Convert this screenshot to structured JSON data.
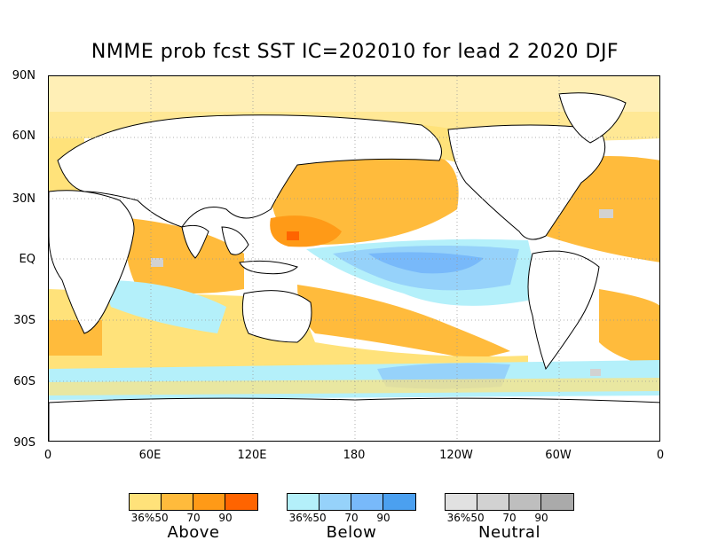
{
  "title": "NMME prob fcst SST IC=202010 for lead 2 2020 DJF",
  "lat_labels": [
    "90N",
    "60N",
    "30N",
    "EQ",
    "30S",
    "60S",
    "90S"
  ],
  "lon_labels": [
    "0",
    "60E",
    "120E",
    "180",
    "120W",
    "60W",
    "0"
  ],
  "legend": {
    "above": {
      "label": "Above",
      "ticks": [
        "36%",
        "50",
        "70",
        "90"
      ],
      "colors": [
        "#ffe27a",
        "#ffbb3c",
        "#ff9a17",
        "#ff6400"
      ]
    },
    "below": {
      "label": "Below",
      "ticks": [
        "36%",
        "50",
        "70",
        "90"
      ],
      "colors": [
        "#b4f0fa",
        "#96d2fa",
        "#78b9fa",
        "#4ba0f0"
      ]
    },
    "neutral": {
      "label": "Neutral",
      "ticks": [
        "36%",
        "50",
        "70",
        "90"
      ],
      "colors": [
        "#e1e1e1",
        "#d2d2d2",
        "#bebebe",
        "#aaaaaa"
      ]
    }
  },
  "map_colors": {
    "above_light": "#ffe27a",
    "above_mid": "#ffbb3c",
    "above_strong": "#ff9a17",
    "above_max": "#ff6400",
    "below_light": "#b4f0fa",
    "below_mid": "#96d2fa",
    "below_strong": "#78b9fa",
    "neutral": "#d2d2d2",
    "land": "#ffffff",
    "grid": "#999999"
  }
}
